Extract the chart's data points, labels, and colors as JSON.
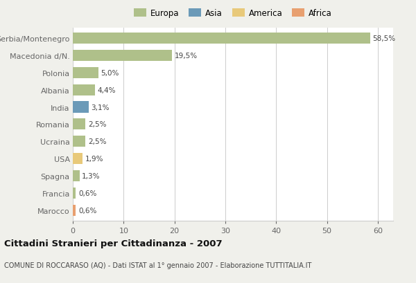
{
  "categories": [
    "Serbia/Montenegro",
    "Macedonia d/N.",
    "Polonia",
    "Albania",
    "India",
    "Romania",
    "Ucraina",
    "USA",
    "Spagna",
    "Francia",
    "Marocco"
  ],
  "values": [
    58.5,
    19.5,
    5.0,
    4.4,
    3.1,
    2.5,
    2.5,
    1.9,
    1.3,
    0.6,
    0.6
  ],
  "labels": [
    "58,5%",
    "19,5%",
    "5,0%",
    "4,4%",
    "3,1%",
    "2,5%",
    "2,5%",
    "1,9%",
    "1,3%",
    "0,6%",
    "0,6%"
  ],
  "colors": [
    "#afc08a",
    "#afc08a",
    "#afc08a",
    "#afc08a",
    "#6b9ab8",
    "#afc08a",
    "#afc08a",
    "#e8c97a",
    "#afc08a",
    "#afc08a",
    "#e8a070"
  ],
  "legend_labels": [
    "Europa",
    "Asia",
    "America",
    "Africa"
  ],
  "legend_colors": [
    "#afc08a",
    "#6b9ab8",
    "#e8c97a",
    "#e8a070"
  ],
  "title": "Cittadini Stranieri per Cittadinanza - 2007",
  "subtitle": "COMUNE DI ROCCARASO (AQ) - Dati ISTAT al 1° gennaio 2007 - Elaborazione TUTTITALIA.IT",
  "xlim": [
    0,
    63
  ],
  "xticks": [
    0,
    10,
    20,
    30,
    40,
    50,
    60
  ],
  "background_color": "#f0f0eb",
  "bar_background": "#ffffff",
  "grid_color": "#cccccc"
}
